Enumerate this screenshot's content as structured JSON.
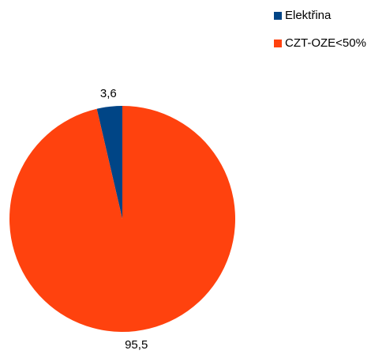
{
  "chart_data": {
    "type": "pie",
    "title": "",
    "legend_position": "top-right",
    "slices": [
      {
        "name": "Elektřina",
        "value": 3.6,
        "label": "3,6",
        "color": "#004586"
      },
      {
        "name": "CZT-OZE<50%",
        "value": 95.5,
        "label": "95,5",
        "color": "#ff420e"
      }
    ]
  }
}
